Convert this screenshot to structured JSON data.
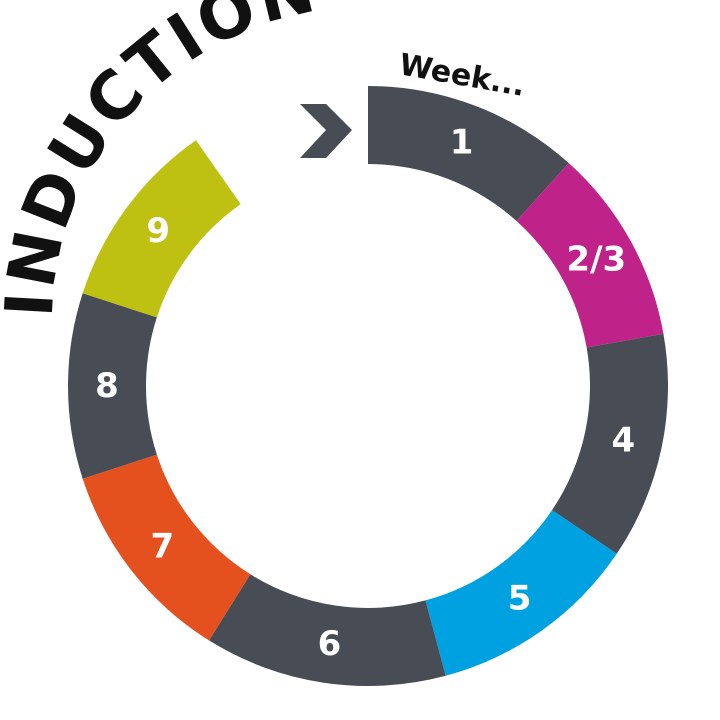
{
  "title": "INDUCTION",
  "week_label": "Week...",
  "colors": {
    "dark": "#474c55",
    "magenta": "#bf2389",
    "blue": "#00a1e0",
    "orange": "#e4501e",
    "olive": "#bec012",
    "text": "#ffffff",
    "arrow": "#474c55"
  },
  "segments": [
    {
      "label": "1",
      "color": "#474c55"
    },
    {
      "label": "2/3",
      "color": "#bf2389"
    },
    {
      "label": "4",
      "color": "#474c55"
    },
    {
      "label": "5",
      "color": "#00a1e0"
    },
    {
      "label": "6",
      "color": "#474c55"
    },
    {
      "label": "7",
      "color": "#e4501e"
    },
    {
      "label": "8",
      "color": "#474c55"
    },
    {
      "label": "9",
      "color": "#bec012"
    }
  ],
  "icons": {
    "start_arrow": "chevron-right-icon"
  }
}
